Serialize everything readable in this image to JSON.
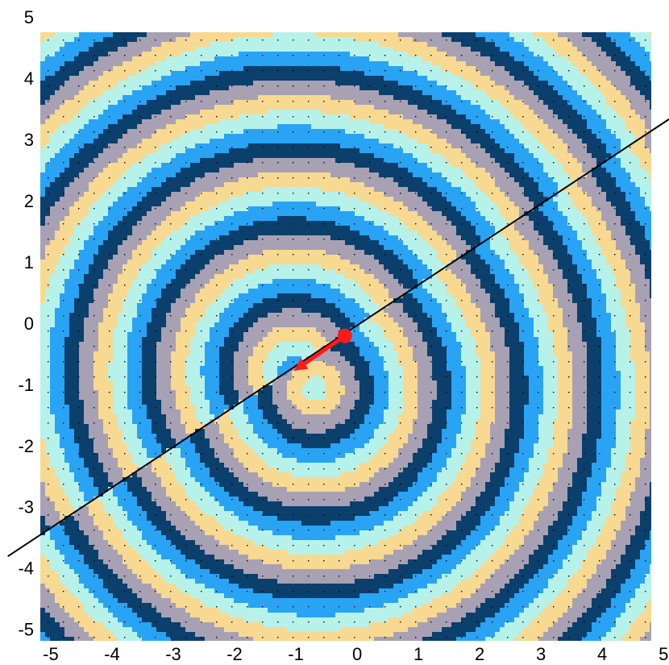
{
  "chart_data": {
    "type": "field",
    "xlim": [
      -5.17,
      4.8
    ],
    "ylim": [
      -5.16,
      4.78
    ],
    "xticks": [
      -5,
      -4,
      -3,
      -2,
      -1,
      0,
      1,
      2,
      3,
      4,
      5
    ],
    "yticks": [
      -5,
      -4,
      -3,
      -2,
      -1,
      0,
      1,
      2,
      3,
      4,
      5
    ],
    "band_colors": [
      "#0b3f6c",
      "#29a3f4",
      "#b6f2e9",
      "#f8d991",
      "#a8a1b3"
    ],
    "line": {
      "x": [
        -5.7,
        5.09
      ],
      "y": [
        -3.78,
        3.36
      ],
      "color": "#000000"
    },
    "arrow": {
      "x": [
        -0.2,
        -1.03
      ],
      "y": [
        -0.18,
        -0.75
      ],
      "color": "#ff1a1a"
    },
    "grid": true
  }
}
